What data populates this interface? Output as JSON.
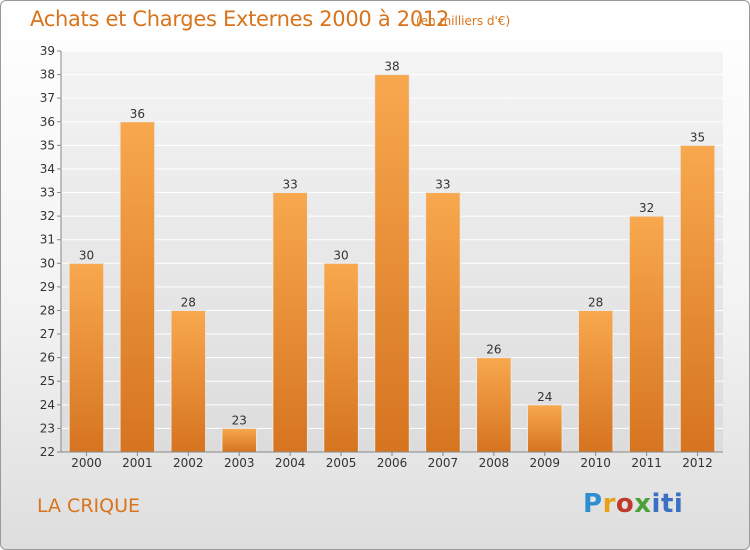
{
  "title": "Achats et Charges Externes 2000 à 2012",
  "subtitle": "(en milliers d'€)",
  "place": "LA CRIQUE",
  "logo": {
    "p": "P",
    "r": "r",
    "o": "o",
    "x": "x",
    "iti": "iti"
  },
  "colors": {
    "accent": "#d8741c",
    "bar_top": "#f8a84e",
    "bar_bottom": "#d67420"
  },
  "chart_data": {
    "type": "bar",
    "categories": [
      "2000",
      "2001",
      "2002",
      "2003",
      "2004",
      "2005",
      "2006",
      "2007",
      "2008",
      "2009",
      "2010",
      "2011",
      "2012"
    ],
    "values": [
      30,
      36,
      28,
      23,
      33,
      30,
      38,
      33,
      26,
      24,
      28,
      32,
      35
    ],
    "ylim": [
      22,
      39
    ],
    "yticks": [
      22,
      23,
      24,
      25,
      26,
      27,
      28,
      29,
      30,
      31,
      32,
      33,
      34,
      35,
      36,
      37,
      38,
      39
    ],
    "grid": true,
    "title": "Achats et Charges Externes 2000 à 2012",
    "xlabel": "",
    "ylabel": ""
  }
}
